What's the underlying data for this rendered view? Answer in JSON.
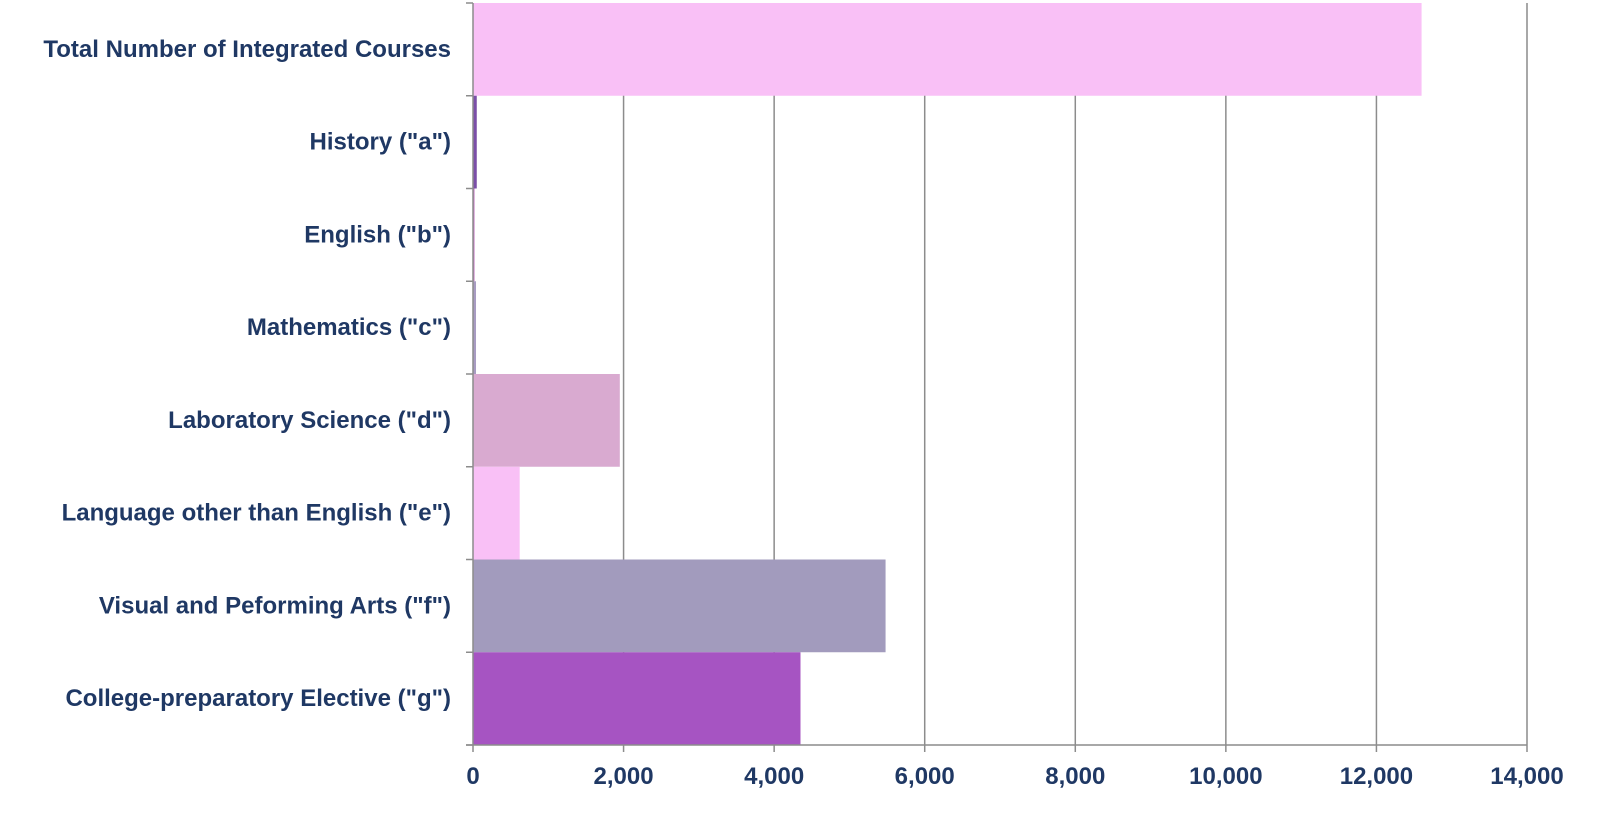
{
  "chart_data": {
    "type": "bar",
    "orientation": "horizontal",
    "title": "",
    "xlabel": "",
    "ylabel": "",
    "categories": [
      "Total Number of Integrated Courses",
      "History (\"a\")",
      "English (\"b\")",
      "Mathematics (\"c\")",
      "Laboratory Science (\"d\")",
      "Language other than English (\"e\")",
      "Visual and Peforming Arts (\"f\")",
      "College-preparatory Elective (\"g\")"
    ],
    "values": [
      12600,
      50,
      20,
      40,
      1950,
      620,
      5480,
      4350
    ],
    "colors": [
      "#f9c0f6",
      "#7b4fa8",
      "#c070c0",
      "#a89bc2",
      "#d9aad0",
      "#f9c0f6",
      "#a29bbd",
      "#a654c2"
    ],
    "xlim": [
      0,
      14000
    ],
    "xticks": [
      0,
      2000,
      4000,
      6000,
      8000,
      10000,
      12000,
      14000
    ],
    "xtick_labels": [
      "0",
      "2,000",
      "4,000",
      "6,000",
      "8,000",
      "10,000",
      "12,000",
      "14,000"
    ],
    "grid": true,
    "legend": "none"
  }
}
